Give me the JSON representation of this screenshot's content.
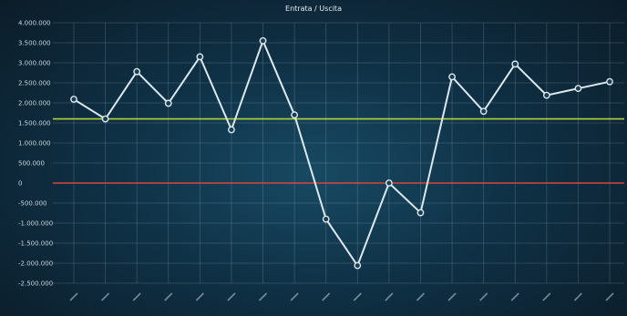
{
  "chart_data": {
    "type": "line",
    "title": "Entrata / Uscita",
    "y_ticks": [
      "4.000.000",
      "3.500.000",
      "3.000.000",
      "2.500.000",
      "2.000.000",
      "1.500.000",
      "1.000.000",
      "500.000",
      "0",
      "-500.000",
      "-1.000.000",
      "-1.500.000",
      "-2.000.000",
      "-2.500.000"
    ],
    "ylim": [
      -2500000,
      4000000
    ],
    "grid": true,
    "series": [
      {
        "values": [
          2090000,
          1600000,
          2780000,
          1990000,
          3150000,
          1330000,
          3550000,
          1700000,
          -900000,
          -2060000,
          0,
          -740000,
          2650000,
          1790000,
          2970000,
          2190000,
          2360000,
          2530000
        ],
        "color": "#dce8ee"
      }
    ],
    "reference_lines": [
      {
        "value": 1600000,
        "color": "#b3d23a"
      },
      {
        "value": 0,
        "color": "#d7463a"
      }
    ],
    "x_points": 18
  }
}
